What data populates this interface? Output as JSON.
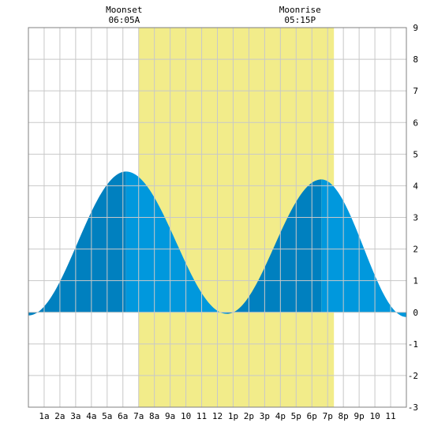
{
  "chart_data": {
    "type": "area",
    "title": "",
    "xlabel": "",
    "ylabel": "",
    "x_unit": "hours",
    "xlim": [
      0,
      24
    ],
    "ylim": [
      -3,
      9
    ],
    "y_ticks": [
      -3,
      -2,
      -1,
      0,
      1,
      2,
      3,
      4,
      5,
      6,
      7,
      8,
      9
    ],
    "x_ticks": [
      {
        "x": 1,
        "label": "1a"
      },
      {
        "x": 2,
        "label": "2a"
      },
      {
        "x": 3,
        "label": "3a"
      },
      {
        "x": 4,
        "label": "4a"
      },
      {
        "x": 5,
        "label": "5a"
      },
      {
        "x": 6,
        "label": "6a"
      },
      {
        "x": 7,
        "label": "7a"
      },
      {
        "x": 8,
        "label": "8a"
      },
      {
        "x": 9,
        "label": "9a"
      },
      {
        "x": 10,
        "label": "10"
      },
      {
        "x": 11,
        "label": "11"
      },
      {
        "x": 12,
        "label": "12"
      },
      {
        "x": 13,
        "label": "1p"
      },
      {
        "x": 14,
        "label": "2p"
      },
      {
        "x": 15,
        "label": "3p"
      },
      {
        "x": 16,
        "label": "4p"
      },
      {
        "x": 17,
        "label": "5p"
      },
      {
        "x": 18,
        "label": "6p"
      },
      {
        "x": 19,
        "label": "7p"
      },
      {
        "x": 20,
        "label": "8p"
      },
      {
        "x": 21,
        "label": "9p"
      },
      {
        "x": 22,
        "label": "10"
      },
      {
        "x": 23,
        "label": "11"
      }
    ],
    "grid": true,
    "moon_events": [
      {
        "label": "Moonset",
        "time": "06:05A",
        "x": 6.08
      },
      {
        "label": "Moonrise",
        "time": "05:15P",
        "x": 17.25
      }
    ],
    "daylight_band": {
      "start": 7.0,
      "end": 19.4
    },
    "tide_extrema": [
      {
        "x": 0.0,
        "y": -0.1
      },
      {
        "x": 6.2,
        "y": 4.45
      },
      {
        "x": 12.6,
        "y": -0.05
      },
      {
        "x": 18.6,
        "y": 4.2
      },
      {
        "x": 24.0,
        "y": -0.15
      }
    ],
    "colors": {
      "daylight": "#f2ec8a",
      "tide_rising": "#0080bf",
      "tide_falling": "#0098dd",
      "grid": "#c8c8c8",
      "axis": "#808080",
      "background": "#ffffff"
    }
  }
}
